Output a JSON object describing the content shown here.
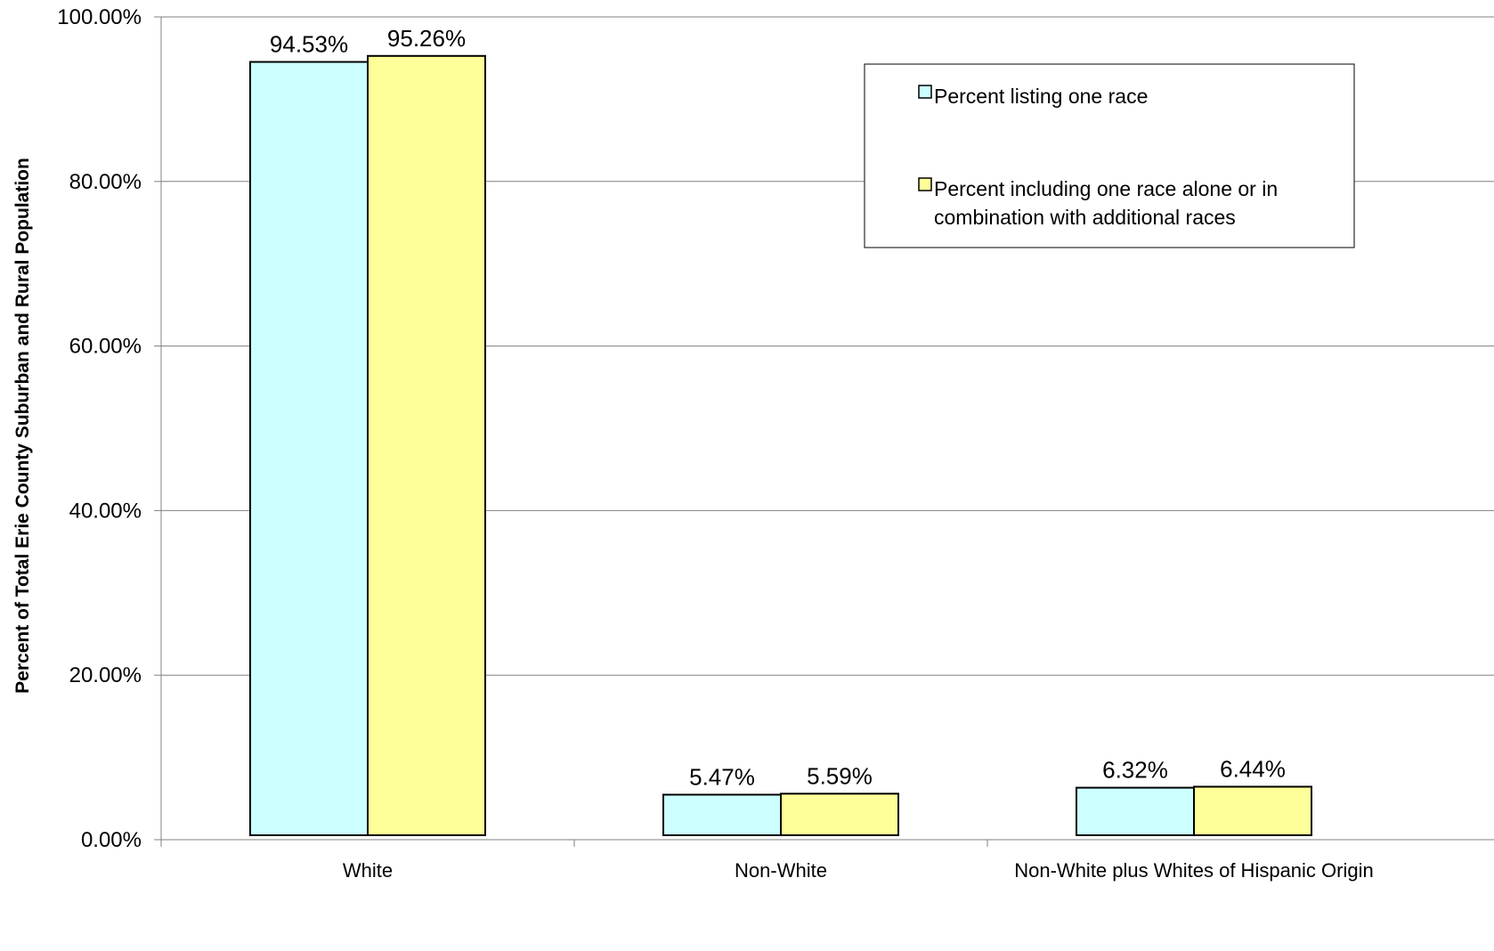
{
  "chart_data": {
    "type": "bar",
    "categories": [
      "White",
      "Non-White",
      "Non-White plus Whites of Hispanic Origin"
    ],
    "series": [
      {
        "name": "Percent listing one race",
        "values": [
          94.53,
          5.47,
          6.32
        ],
        "labels": [
          "94.53%",
          "5.47%",
          "6.32%"
        ],
        "color": "#ccffff"
      },
      {
        "name": "Percent including one race alone or in combination with additional races",
        "name_lines": [
          "Percent including one race alone or in",
          "combination with additional races"
        ],
        "values": [
          95.26,
          5.59,
          6.44
        ],
        "labels": [
          "95.26%",
          "5.59%",
          "6.44%"
        ],
        "color": "#ffff99"
      }
    ],
    "ylabel": "Percent of Total Erie County Suburban and Rural Population",
    "xlabel": "",
    "ylim": [
      0,
      100
    ],
    "yticks": [
      0,
      20,
      40,
      60,
      80,
      100
    ],
    "ytick_labels": [
      "0.00%",
      "20.00%",
      "40.00%",
      "60.00%",
      "80.00%",
      "100.00%"
    ],
    "grid": true,
    "legend_position": "top-right"
  }
}
